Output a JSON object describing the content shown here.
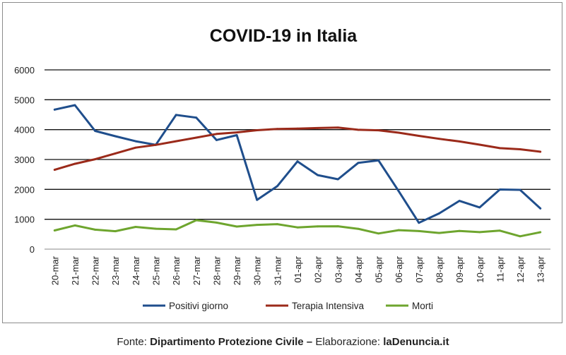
{
  "chart_data": {
    "type": "line",
    "title": "COVID-19 in Italia",
    "xlabel": "",
    "ylabel": "",
    "ylim": [
      0,
      6000
    ],
    "yticks": [
      0,
      1000,
      2000,
      3000,
      4000,
      5000,
      6000
    ],
    "grid": true,
    "legend_position": "bottom",
    "categories": [
      "20-mar",
      "21-mar",
      "22-mar",
      "23-mar",
      "24-mar",
      "25-mar",
      "26-mar",
      "27-mar",
      "28-mar",
      "29-mar",
      "30-mar",
      "31-mar",
      "01-apr",
      "02-apr",
      "03-apr",
      "04-apr",
      "05-apr",
      "06-apr",
      "07-apr",
      "08-apr",
      "09-apr",
      "10-apr",
      "11-apr",
      "12-apr",
      "13-apr"
    ],
    "series": [
      {
        "name": "Positivi giorno",
        "color": "#1f4e8c",
        "values": [
          4670,
          4820,
          3957,
          3780,
          3612,
          3491,
          4492,
          4401,
          3651,
          3815,
          1648,
          2107,
          2937,
          2477,
          2339,
          2886,
          2972,
          1941,
          880,
          1195,
          1615,
          1396,
          1996,
          1984,
          1363
        ]
      },
      {
        "name": "Terapia Intensiva",
        "color": "#9b2a1a",
        "values": [
          2655,
          2857,
          3009,
          3204,
          3396,
          3489,
          3612,
          3732,
          3856,
          3906,
          3981,
          4023,
          4035,
          4053,
          4068,
          3994,
          3977,
          3898,
          3792,
          3693,
          3605,
          3497,
          3381,
          3343,
          3260
        ]
      },
      {
        "name": "Morti",
        "color": "#6ea52e",
        "values": [
          627,
          793,
          651,
          601,
          743,
          683,
          662,
          969,
          889,
          756,
          812,
          837,
          727,
          760,
          766,
          681,
          525,
          636,
          604,
          542,
          610,
          570,
          619,
          431,
          566
        ]
      }
    ]
  },
  "footer": {
    "prefix": "Fonte: ",
    "source": "Dipartimento Protezione Civile",
    "separator": " – ",
    "elab_label": "Elaborazione: ",
    "elab_name": "laDenuncia.it"
  }
}
